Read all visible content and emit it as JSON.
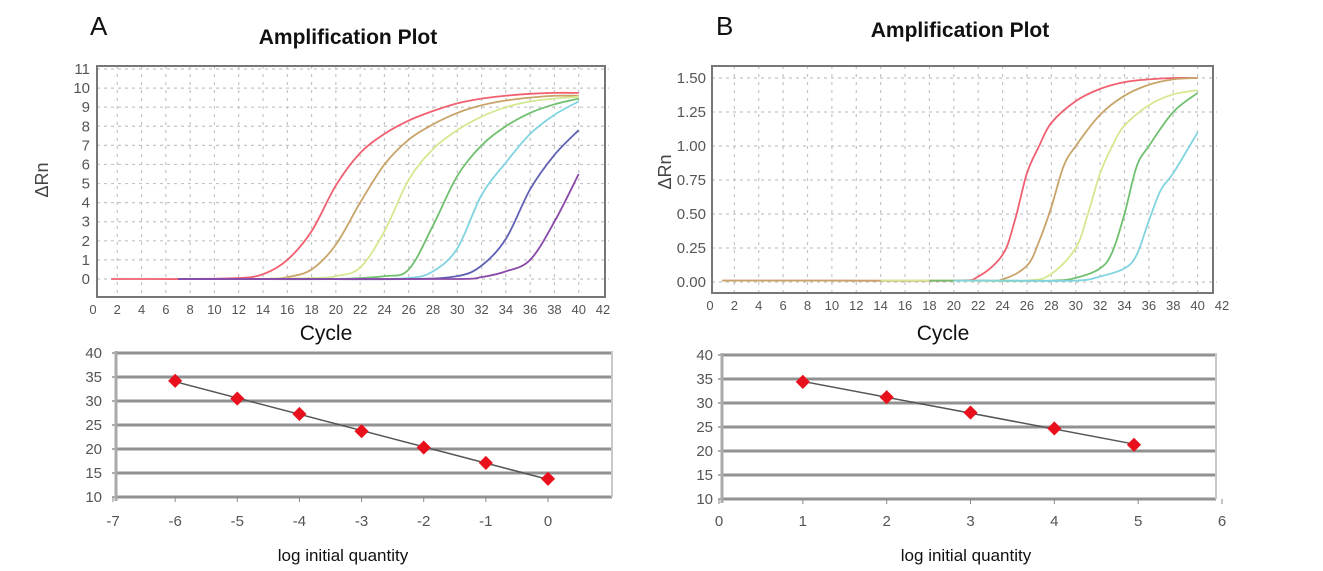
{
  "panels": {
    "A": {
      "label": "A"
    },
    "B": {
      "label": "B"
    }
  },
  "chart_data": [
    {
      "panel": "A",
      "type": "line",
      "title": "Amplification Plot",
      "xlabel": "Cycle",
      "ylabel": "ΔRn",
      "xlim": [
        0,
        42
      ],
      "ylim": [
        0,
        11
      ],
      "xticks": [
        "0",
        "2",
        "4",
        "6",
        "8",
        "10",
        "12",
        "14",
        "16",
        "18",
        "20",
        "22",
        "24",
        "26",
        "28",
        "30",
        "32",
        "34",
        "36",
        "38",
        "40",
        "42"
      ],
      "yticks": [
        "0",
        "1",
        "2",
        "3",
        "4",
        "5",
        "6",
        "7",
        "8",
        "9",
        "10",
        "11"
      ],
      "grid": true,
      "series": [
        {
          "color": "#f06070",
          "x": [
            1.5,
            4,
            8,
            12,
            14,
            16,
            18,
            20,
            22,
            24,
            26,
            28,
            30,
            32,
            34,
            36,
            38,
            40
          ],
          "y": [
            0,
            0,
            0,
            0.05,
            0.25,
            1.0,
            2.5,
            4.9,
            6.6,
            7.6,
            8.3,
            8.8,
            9.2,
            9.45,
            9.6,
            9.7,
            9.75,
            9.75
          ]
        },
        {
          "color": "#c8a468",
          "x": [
            7,
            10,
            14,
            16,
            18,
            20,
            22,
            24,
            26,
            28,
            30,
            32,
            34,
            36,
            38,
            40
          ],
          "y": [
            0,
            0,
            0,
            0.1,
            0.5,
            1.8,
            4.0,
            6.0,
            7.3,
            8.1,
            8.7,
            9.1,
            9.35,
            9.5,
            9.6,
            9.6
          ]
        },
        {
          "color": "#d4e890",
          "x": [
            7,
            12,
            18,
            20,
            22,
            24,
            26,
            28,
            30,
            32,
            34,
            36,
            38,
            40
          ],
          "y": [
            0,
            0,
            0.05,
            0.15,
            0.6,
            2.5,
            5.2,
            6.8,
            7.8,
            8.5,
            9.0,
            9.3,
            9.45,
            9.55
          ]
        },
        {
          "color": "#70c070",
          "x": [
            7,
            12,
            20,
            24,
            26,
            28,
            30,
            32,
            34,
            36,
            38,
            40
          ],
          "y": [
            0,
            0,
            0,
            0.15,
            0.5,
            2.8,
            5.4,
            7.0,
            8.0,
            8.7,
            9.15,
            9.45
          ]
        },
        {
          "color": "#80d4e0",
          "x": [
            7,
            14,
            22,
            26,
            28,
            30,
            32,
            34,
            36,
            38,
            40
          ],
          "y": [
            0,
            0,
            0,
            0.05,
            0.4,
            1.6,
            4.4,
            6.1,
            7.6,
            8.6,
            9.3
          ]
        },
        {
          "color": "#6060b4",
          "x": [
            7,
            16,
            26,
            30,
            32,
            34,
            36,
            38,
            40
          ],
          "y": [
            0,
            0,
            0,
            0.15,
            0.7,
            2.1,
            4.7,
            6.5,
            7.8
          ]
        },
        {
          "color": "#8a48a8",
          "x": [
            7,
            20,
            30,
            32,
            34,
            36,
            38,
            40
          ],
          "y": [
            0,
            0,
            0,
            0.1,
            0.4,
            1.0,
            3.0,
            5.5
          ]
        }
      ]
    },
    {
      "panel": "A",
      "type": "scatter",
      "xlabel": "log initial quantity",
      "xlim": [
        -7,
        1
      ],
      "ylim": [
        10,
        40
      ],
      "xticks": [
        "-7",
        "-6",
        "-5",
        "-4",
        "-3",
        "-2",
        "-1",
        "0"
      ],
      "yticks": [
        "10",
        "15",
        "20",
        "25",
        "30",
        "35",
        "40"
      ],
      "grid": true,
      "trendline": true,
      "marker_color": "#e8101c",
      "x": [
        -6,
        -5,
        -4,
        -3,
        -2,
        -1,
        0
      ],
      "y": [
        34.2,
        30.5,
        27.3,
        23.7,
        20.3,
        17.1,
        13.8
      ]
    },
    {
      "panel": "B",
      "type": "line",
      "title": "Amplification Plot",
      "xlabel": "Cycle",
      "ylabel": "ΔRn",
      "xlim": [
        0,
        42
      ],
      "ylim": [
        0,
        1.5
      ],
      "xticks": [
        "0",
        "2",
        "4",
        "6",
        "8",
        "10",
        "12",
        "14",
        "16",
        "18",
        "20",
        "22",
        "24",
        "26",
        "28",
        "30",
        "32",
        "34",
        "36",
        "38",
        "40",
        "42"
      ],
      "yticks": [
        "0.00",
        "0.25",
        "0.50",
        "0.75",
        "1.00",
        "1.25",
        "1.50"
      ],
      "grid": true,
      "series": [
        {
          "color": "#f06070",
          "x": [
            1,
            10,
            20,
            22,
            24,
            25,
            26,
            27,
            28,
            30,
            32,
            34,
            36,
            38,
            40
          ],
          "y": [
            0.01,
            0.01,
            0.01,
            0.04,
            0.2,
            0.45,
            0.8,
            1.0,
            1.17,
            1.33,
            1.42,
            1.47,
            1.49,
            1.5,
            1.5
          ]
        },
        {
          "color": "#c8a468",
          "x": [
            1,
            10,
            22,
            24,
            26,
            27,
            28,
            29,
            30,
            32,
            34,
            36,
            38,
            40
          ],
          "y": [
            0.01,
            0.01,
            0.01,
            0.02,
            0.12,
            0.3,
            0.55,
            0.85,
            1.0,
            1.23,
            1.37,
            1.45,
            1.49,
            1.5
          ]
        },
        {
          "color": "#d4e890",
          "x": [
            14,
            20,
            26,
            28,
            30,
            31,
            32,
            33,
            34,
            36,
            38,
            40
          ],
          "y": [
            0.01,
            0.01,
            0.01,
            0.06,
            0.25,
            0.5,
            0.8,
            1.0,
            1.15,
            1.3,
            1.38,
            1.41
          ]
        },
        {
          "color": "#70c070",
          "x": [
            18,
            22,
            28,
            30,
            32,
            33,
            34,
            35,
            36,
            38,
            40
          ],
          "y": [
            0.01,
            0.01,
            0.01,
            0.03,
            0.1,
            0.22,
            0.5,
            0.85,
            1.0,
            1.25,
            1.39
          ]
        },
        {
          "color": "#80d4e0",
          "x": [
            20,
            24,
            30,
            32,
            34,
            35,
            36,
            37,
            38,
            40
          ],
          "y": [
            0.01,
            0.01,
            0.01,
            0.04,
            0.1,
            0.2,
            0.45,
            0.68,
            0.8,
            1.1
          ]
        }
      ]
    },
    {
      "panel": "B",
      "type": "scatter",
      "xlabel": "log initial quantity",
      "xlim": [
        0,
        6
      ],
      "ylim": [
        10,
        40
      ],
      "xticks": [
        "0",
        "1",
        "2",
        "3",
        "4",
        "5",
        "6"
      ],
      "yticks": [
        "10",
        "15",
        "20",
        "25",
        "30",
        "35",
        "40"
      ],
      "grid": true,
      "trendline": true,
      "marker_color": "#e8101c",
      "x": [
        1,
        2,
        3,
        4,
        4.95
      ],
      "y": [
        34.4,
        31.2,
        28.0,
        24.7,
        21.3
      ]
    }
  ]
}
